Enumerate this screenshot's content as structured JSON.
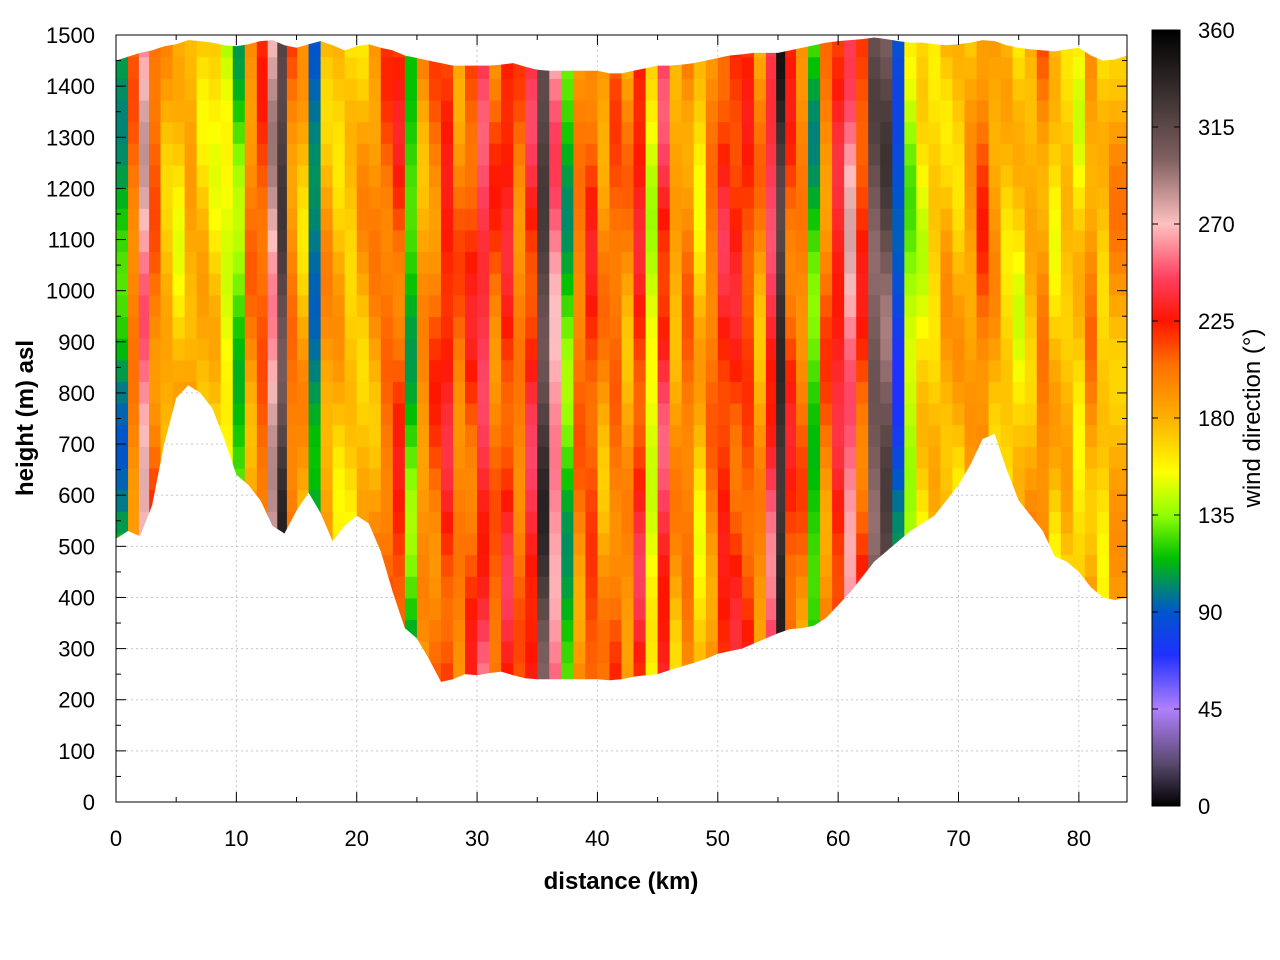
{
  "chart_data": {
    "type": "heatmap",
    "title": "",
    "xlabel": "distance (km)",
    "ylabel": "height (m) asl",
    "colorbar_label": "wind direction (°)",
    "xlim": [
      0,
      84
    ],
    "ylim": [
      0,
      1500
    ],
    "x_ticks": [
      0,
      10,
      20,
      30,
      40,
      50,
      60,
      70,
      80
    ],
    "y_ticks": [
      0,
      100,
      200,
      300,
      400,
      500,
      600,
      700,
      800,
      900,
      1000,
      1100,
      1200,
      1300,
      1400,
      1500
    ],
    "colorbar_ticks": [
      0,
      45,
      90,
      135,
      180,
      225,
      270,
      315,
      360
    ],
    "colorbar_range": [
      0,
      360
    ],
    "grid": true,
    "colormap_stops": [
      {
        "value": 0,
        "color": "#000000"
      },
      {
        "value": 20,
        "color": "#5a4a70"
      },
      {
        "value": 45,
        "color": "#b080ff"
      },
      {
        "value": 70,
        "color": "#2030ff"
      },
      {
        "value": 90,
        "color": "#0055cc"
      },
      {
        "value": 100,
        "color": "#007f7f"
      },
      {
        "value": 115,
        "color": "#00c000"
      },
      {
        "value": 135,
        "color": "#90ff00"
      },
      {
        "value": 155,
        "color": "#ffff00"
      },
      {
        "value": 180,
        "color": "#ffb000"
      },
      {
        "value": 205,
        "color": "#ff7000"
      },
      {
        "value": 225,
        "color": "#ff1500"
      },
      {
        "value": 245,
        "color": "#ff4060"
      },
      {
        "value": 270,
        "color": "#ffc0c0"
      },
      {
        "value": 300,
        "color": "#806060"
      },
      {
        "value": 330,
        "color": "#3a3030"
      },
      {
        "value": 360,
        "color": "#000000"
      }
    ],
    "terrain_profile": {
      "x": [
        0,
        1,
        2,
        3,
        4,
        5,
        6,
        7,
        8,
        9,
        10,
        11,
        12,
        13,
        14,
        15,
        16,
        17,
        18,
        19,
        20,
        21,
        22,
        23,
        24,
        25,
        26,
        27,
        28,
        29,
        30,
        31,
        32,
        33,
        34,
        35,
        36,
        37,
        38,
        39,
        40,
        41,
        42,
        43,
        44,
        45,
        46,
        47,
        48,
        49,
        50,
        51,
        52,
        53,
        54,
        55,
        56,
        57,
        58,
        59,
        60,
        61,
        62,
        63,
        64,
        65,
        66,
        67,
        68,
        69,
        70,
        71,
        72,
        73,
        74,
        75,
        76,
        77,
        78,
        79,
        80,
        81,
        82,
        83,
        84
      ],
      "height": [
        515,
        530,
        520,
        580,
        700,
        790,
        815,
        800,
        770,
        710,
        640,
        620,
        590,
        540,
        525,
        570,
        605,
        565,
        510,
        540,
        560,
        545,
        490,
        410,
        340,
        320,
        280,
        235,
        240,
        250,
        248,
        252,
        255,
        248,
        242,
        240,
        240,
        240,
        240,
        240,
        240,
        238,
        240,
        245,
        248,
        250,
        258,
        265,
        272,
        280,
        290,
        295,
        300,
        310,
        320,
        330,
        338,
        340,
        345,
        360,
        385,
        410,
        440,
        470,
        490,
        510,
        530,
        545,
        560,
        590,
        620,
        660,
        710,
        720,
        650,
        590,
        560,
        530,
        480,
        470,
        450,
        420,
        400,
        395,
        400
      ]
    },
    "top_profile": {
      "x": [
        0,
        2,
        3,
        4,
        5,
        6,
        7,
        8,
        9,
        10,
        11,
        12,
        13,
        14,
        15,
        16,
        17,
        18,
        19,
        20,
        21,
        22,
        23,
        24,
        25,
        26,
        27,
        28,
        29,
        30,
        31,
        32,
        33,
        34,
        35,
        36,
        37,
        38,
        39,
        40,
        41,
        42,
        43,
        44,
        45,
        46,
        47,
        48,
        49,
        50,
        51,
        52,
        53,
        54,
        55,
        56,
        57,
        58,
        59,
        60,
        61,
        62,
        63,
        64,
        65,
        66,
        67,
        68,
        69,
        70,
        71,
        72,
        73,
        74,
        75,
        76,
        77,
        78,
        79,
        80,
        81,
        82,
        83,
        84
      ],
      "height": [
        1450,
        1465,
        1470,
        1478,
        1482,
        1490,
        1488,
        1485,
        1480,
        1478,
        1482,
        1488,
        1490,
        1480,
        1475,
        1482,
        1488,
        1480,
        1470,
        1478,
        1482,
        1475,
        1470,
        1460,
        1455,
        1450,
        1445,
        1440,
        1440,
        1440,
        1440,
        1442,
        1445,
        1438,
        1432,
        1430,
        1430,
        1430,
        1430,
        1430,
        1425,
        1425,
        1430,
        1435,
        1440,
        1440,
        1442,
        1445,
        1450,
        1455,
        1460,
        1462,
        1465,
        1465,
        1465,
        1470,
        1475,
        1480,
        1485,
        1488,
        1490,
        1492,
        1495,
        1492,
        1488,
        1485,
        1485,
        1482,
        1480,
        1482,
        1485,
        1490,
        1488,
        1480,
        1475,
        1472,
        1470,
        1468,
        1472,
        1475,
        1460,
        1450,
        1452,
        1460
      ]
    },
    "wind_direction_columns": [
      {
        "x": 0.5,
        "dir": 110
      },
      {
        "x": 1.5,
        "dir": 200
      },
      {
        "x": 2.3,
        "dir": 265
      },
      {
        "x": 3.2,
        "dir": 205
      },
      {
        "x": 4.2,
        "dir": 180
      },
      {
        "x": 5.2,
        "dir": 170
      },
      {
        "x": 6.2,
        "dir": 185
      },
      {
        "x": 7.2,
        "dir": 175
      },
      {
        "x": 8.2,
        "dir": 165
      },
      {
        "x": 9.2,
        "dir": 150
      },
      {
        "x": 10.2,
        "dir": 125
      },
      {
        "x": 11.2,
        "dir": 195
      },
      {
        "x": 12.2,
        "dir": 210
      },
      {
        "x": 13.0,
        "dir": 275
      },
      {
        "x": 13.8,
        "dir": 320
      },
      {
        "x": 14.6,
        "dir": 200
      },
      {
        "x": 15.5,
        "dir": 180
      },
      {
        "x": 16.5,
        "dir": 100
      },
      {
        "x": 17.5,
        "dir": 185
      },
      {
        "x": 18.5,
        "dir": 175
      },
      {
        "x": 19.5,
        "dir": 170
      },
      {
        "x": 20.5,
        "dir": 180
      },
      {
        "x": 21.5,
        "dir": 190
      },
      {
        "x": 22.5,
        "dir": 205
      },
      {
        "x": 23.5,
        "dir": 215
      },
      {
        "x": 24.5,
        "dir": 120
      },
      {
        "x": 25.5,
        "dir": 190
      },
      {
        "x": 26.5,
        "dir": 205
      },
      {
        "x": 27.5,
        "dir": 225
      },
      {
        "x": 28.5,
        "dir": 200
      },
      {
        "x": 29.5,
        "dir": 215
      },
      {
        "x": 30.5,
        "dir": 240
      },
      {
        "x": 31.5,
        "dir": 205
      },
      {
        "x": 32.5,
        "dir": 225
      },
      {
        "x": 33.5,
        "dir": 200
      },
      {
        "x": 34.5,
        "dir": 230
      },
      {
        "x": 35.5,
        "dir": 320
      },
      {
        "x": 36.5,
        "dir": 260
      },
      {
        "x": 37.5,
        "dir": 120
      },
      {
        "x": 38.5,
        "dir": 200
      },
      {
        "x": 39.5,
        "dir": 215
      },
      {
        "x": 40.5,
        "dir": 190
      },
      {
        "x": 41.5,
        "dir": 205
      },
      {
        "x": 42.5,
        "dir": 190
      },
      {
        "x": 43.5,
        "dir": 225
      },
      {
        "x": 44.5,
        "dir": 150
      },
      {
        "x": 45.5,
        "dir": 235
      },
      {
        "x": 46.5,
        "dir": 185
      },
      {
        "x": 47.5,
        "dir": 200
      },
      {
        "x": 48.5,
        "dir": 170
      },
      {
        "x": 49.5,
        "dir": 200
      },
      {
        "x": 50.5,
        "dir": 225
      },
      {
        "x": 51.5,
        "dir": 220
      },
      {
        "x": 52.5,
        "dir": 215
      },
      {
        "x": 53.5,
        "dir": 190
      },
      {
        "x": 54.5,
        "dir": 240
      },
      {
        "x": 55.2,
        "dir": 330
      },
      {
        "x": 56.0,
        "dir": 215
      },
      {
        "x": 57.0,
        "dir": 200
      },
      {
        "x": 58.0,
        "dir": 120
      },
      {
        "x": 59.0,
        "dir": 200
      },
      {
        "x": 60.0,
        "dir": 230
      },
      {
        "x": 61.0,
        "dir": 260
      },
      {
        "x": 62.0,
        "dir": 215
      },
      {
        "x": 63.0,
        "dir": 305
      },
      {
        "x": 64.0,
        "dir": 310
      },
      {
        "x": 65.0,
        "dir": 85
      },
      {
        "x": 66.0,
        "dir": 140
      },
      {
        "x": 67.0,
        "dir": 160
      },
      {
        "x": 68.0,
        "dir": 170
      },
      {
        "x": 69.0,
        "dir": 180
      },
      {
        "x": 70.0,
        "dir": 175
      },
      {
        "x": 71.0,
        "dir": 185
      },
      {
        "x": 72.0,
        "dir": 205
      },
      {
        "x": 73.0,
        "dir": 185
      },
      {
        "x": 74.0,
        "dir": 170
      },
      {
        "x": 75.0,
        "dir": 165
      },
      {
        "x": 76.0,
        "dir": 180
      },
      {
        "x": 77.0,
        "dir": 195
      },
      {
        "x": 78.0,
        "dir": 170
      },
      {
        "x": 79.0,
        "dir": 175
      },
      {
        "x": 80.0,
        "dir": 165
      },
      {
        "x": 81.0,
        "dir": 190
      },
      {
        "x": 82.0,
        "dir": 170
      },
      {
        "x": 83.0,
        "dir": 185
      }
    ]
  }
}
